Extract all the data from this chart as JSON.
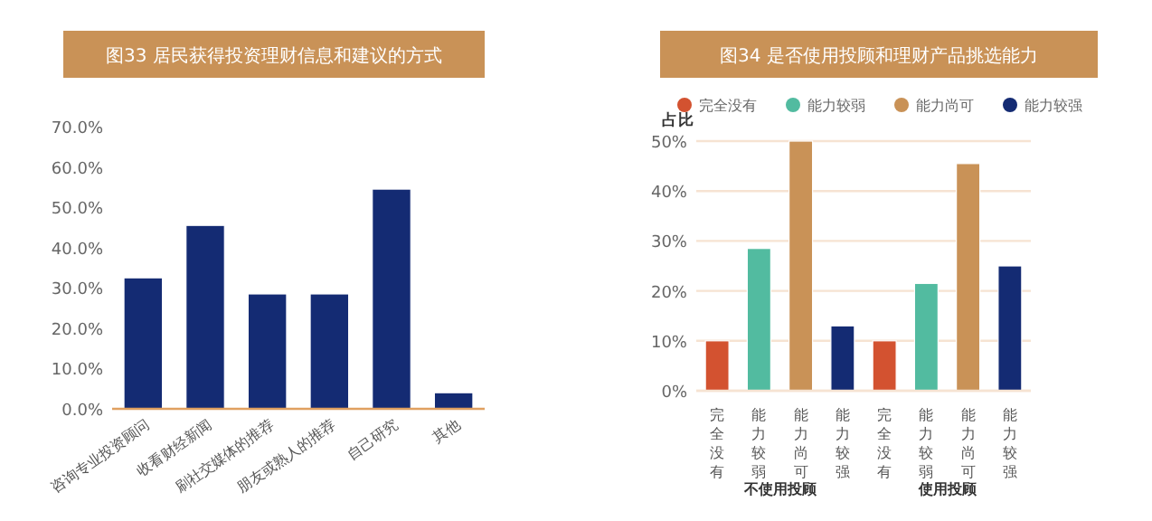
{
  "chart_data": [
    {
      "type": "bar",
      "title": "图33 居民获得投资理财信息和建议的方式",
      "categories": [
        "咨询专业投资顾问",
        "收看财经新闻",
        "刷社交媒体的推荐",
        "朋友或熟人的推荐",
        "自己研究",
        "其他"
      ],
      "series": [
        {
          "color": "#142b73",
          "values": [
            32.5,
            45.5,
            28.5,
            28.5,
            54.5,
            4
          ]
        }
      ],
      "ylim": [
        0,
        70
      ],
      "yticks": [
        {
          "value": 0,
          "label": "0.0%"
        },
        {
          "value": 10,
          "label": "10.0%"
        },
        {
          "value": 20,
          "label": "20.0%"
        },
        {
          "value": 30,
          "label": "30.0%"
        },
        {
          "value": 40,
          "label": "40.0%"
        },
        {
          "value": 50,
          "label": "50.0%"
        },
        {
          "value": 60,
          "label": "60.0%"
        },
        {
          "value": 70,
          "label": "70.0%"
        }
      ],
      "grid": false,
      "legend": false
    },
    {
      "type": "bar",
      "title": "图34 是否使用投顾和理财产品挑选能力",
      "ylabel": "占比",
      "categories": [
        "完全没有",
        "能力较弱",
        "能力尚可",
        "能力较强",
        "完全没有",
        "能力较弱",
        "能力尚可",
        "能力较强"
      ],
      "series": [
        {
          "name": "完全没有",
          "color": "#d35230",
          "values": [
            10,
            null,
            null,
            null,
            10,
            null,
            null,
            null
          ]
        },
        {
          "name": "能力较弱",
          "color": "#52bba0",
          "values": [
            null,
            28.5,
            null,
            null,
            null,
            21.5,
            null,
            null
          ]
        },
        {
          "name": "能力尚可",
          "color": "#c99257",
          "values": [
            null,
            null,
            50,
            null,
            null,
            null,
            45.5,
            null
          ]
        },
        {
          "name": "能力较强",
          "color": "#142b73",
          "values": [
            null,
            null,
            null,
            13,
            null,
            null,
            null,
            25
          ]
        }
      ],
      "annotations": [
        "不使用投顾",
        "使用投顾"
      ],
      "ylim": [
        0,
        50
      ],
      "yticks": [
        {
          "value": 0,
          "label": "0%"
        },
        {
          "value": 10,
          "label": "10%"
        },
        {
          "value": 20,
          "label": "20%"
        },
        {
          "value": 30,
          "label": "30%"
        },
        {
          "value": 40,
          "label": "40%"
        },
        {
          "value": 50,
          "label": "50%"
        }
      ],
      "grid": "y",
      "legend": "top"
    }
  ]
}
